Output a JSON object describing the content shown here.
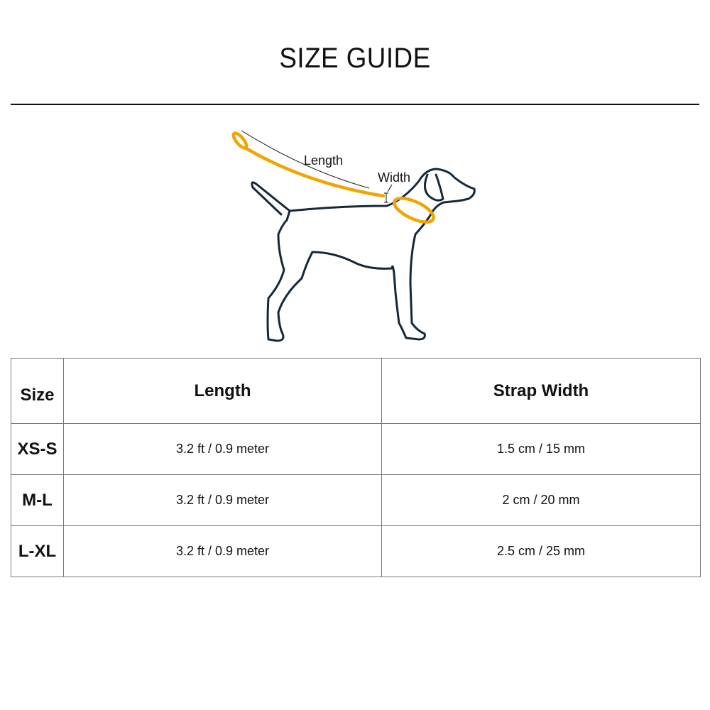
{
  "title": "SIZE GUIDE",
  "diagram": {
    "length_label": "Length",
    "width_label": "Width",
    "colors": {
      "leash": "#f0a500",
      "outline": "#15283a"
    }
  },
  "table": {
    "headers": [
      "Size",
      "Length",
      "Strap Width"
    ],
    "rows": [
      {
        "size": "XS-S",
        "length": "3.2 ft / 0.9 meter",
        "width": "1.5 cm / 15 mm"
      },
      {
        "size": "M-L",
        "length": "3.2 ft / 0.9 meter",
        "width": "2 cm / 20 mm"
      },
      {
        "size": "L-XL",
        "length": "3.2 ft / 0.9 meter",
        "width": "2.5 cm / 25 mm"
      }
    ]
  }
}
